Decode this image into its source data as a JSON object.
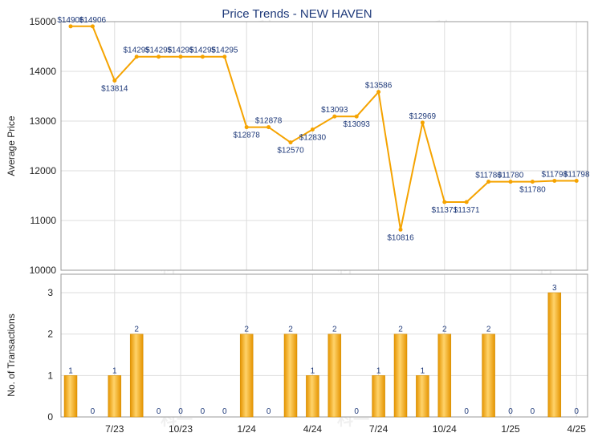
{
  "chart_data": [
    {
      "type": "line",
      "title": "Price Trends - NEW HAVEN",
      "ylabel": "Average Price",
      "ylim": [
        10000,
        15000
      ],
      "yticks": [
        10000,
        11000,
        12000,
        13000,
        14000,
        15000
      ],
      "color": "#f5a300",
      "series": [
        {
          "values": [
            14906,
            14906,
            13814,
            14295,
            14295,
            14295,
            14295,
            14295,
            12878,
            12878,
            12570,
            12830,
            13093,
            13093,
            13586,
            10816,
            12969,
            11371,
            11371,
            11780,
            11780,
            11780,
            11798,
            11798
          ],
          "labels": [
            "$14906",
            "$14906",
            "$13814",
            "$14295",
            "$14295",
            "$14295",
            "$14295",
            "$14295",
            "$12878",
            "$12878",
            "$12570",
            "$12830",
            "$13093",
            "$13093",
            "$13586",
            "$10816",
            "$12969",
            "$11371",
            "$11371",
            "$11780",
            "$11780",
            "$11780",
            "$11798",
            "$11798"
          ]
        }
      ]
    },
    {
      "type": "bar",
      "ylabel": "No. of Transactions",
      "ylim": [
        0,
        3
      ],
      "yticks": [
        0,
        1,
        2,
        3
      ],
      "color": "#f5a300",
      "values": [
        1,
        0,
        1,
        2,
        0,
        0,
        0,
        0,
        2,
        0,
        2,
        1,
        2,
        0,
        1,
        2,
        1,
        2,
        0,
        2,
        0,
        0,
        3,
        0
      ],
      "labels": [
        "1",
        "0",
        "1",
        "2",
        "0",
        "0",
        "0",
        "0",
        "2",
        "0",
        "2",
        "1",
        "2",
        "0",
        "1",
        "2",
        "1",
        "2",
        "0",
        "2",
        "0",
        "0",
        "3",
        "0"
      ],
      "xticks": [
        {
          "index": 2,
          "label": "7/23"
        },
        {
          "index": 5,
          "label": "10/23"
        },
        {
          "index": 8,
          "label": "1/24"
        },
        {
          "index": 11,
          "label": "4/24"
        },
        {
          "index": 14,
          "label": "7/24"
        },
        {
          "index": 17,
          "label": "10/24"
        },
        {
          "index": 20,
          "label": "1/25"
        },
        {
          "index": 23,
          "label": "4/25"
        }
      ]
    }
  ],
  "watermark": "科一"
}
